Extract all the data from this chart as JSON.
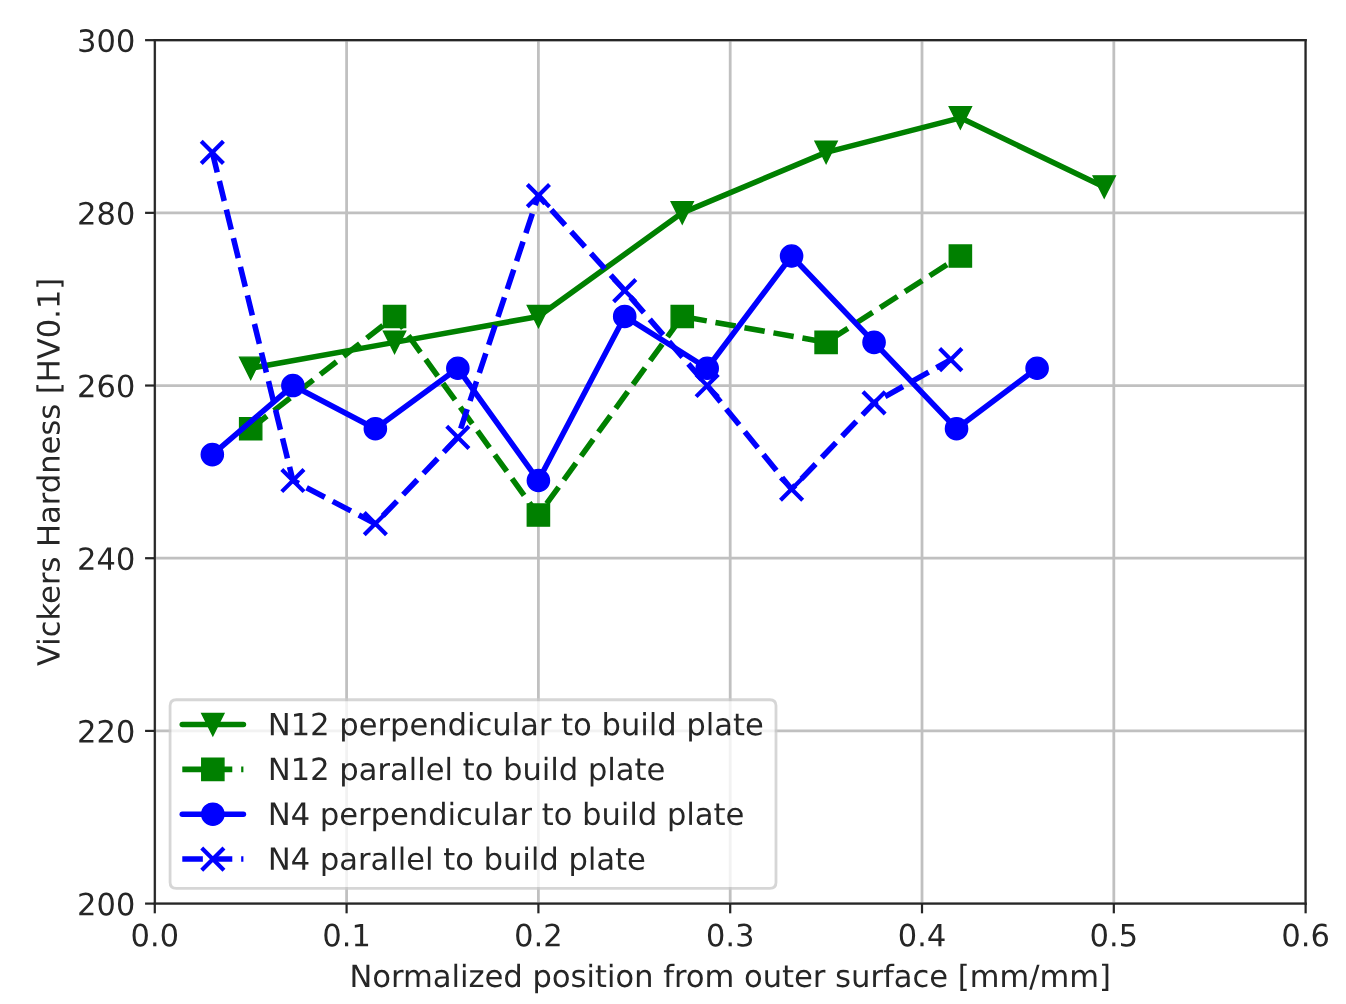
{
  "chart_data": {
    "type": "line",
    "xlabel": "Normalized position from outer surface [mm/mm]",
    "ylabel": "Vickers Hardness [HV0.1]",
    "xlim": [
      0.0,
      0.6
    ],
    "xticks": [
      {
        "value": 0.0,
        "label": "0.0"
      },
      0.1,
      0.2,
      0.3,
      0.4,
      0.5,
      0.6
    ],
    "ylim": [
      200,
      300
    ],
    "yticks": [
      200,
      220,
      240,
      260,
      280,
      300
    ],
    "grid": true,
    "legend": "bottom left",
    "series": [
      {
        "name": "N12 perpendicular to build plate",
        "color": "#008000",
        "marker": "triangle",
        "line_style": "solid",
        "x": [
          0.05,
          0.125,
          0.2,
          0.275,
          0.35,
          0.42,
          0.495
        ],
        "values": [
          262,
          265,
          268,
          280,
          287,
          291,
          283
        ]
      },
      {
        "name": "N12 parallel to build plate",
        "color": "#008000",
        "marker": "square",
        "line_style": "dashed",
        "x": [
          0.05,
          0.125,
          0.2,
          0.275,
          0.35,
          0.42
        ],
        "values": [
          255,
          268,
          245,
          268,
          265,
          275
        ]
      },
      {
        "name": "N4 perpendicular to build plate",
        "color": "#0000ff",
        "marker": "circle",
        "line_style": "solid",
        "x": [
          0.03,
          0.072,
          0.115,
          0.158,
          0.2,
          0.245,
          0.288,
          0.332,
          0.375,
          0.418,
          0.46
        ],
        "values": [
          252,
          260,
          255,
          262,
          249,
          268,
          262,
          275,
          265,
          255,
          262
        ]
      },
      {
        "name": "N4 parallel to build plate",
        "color": "#0000ff",
        "marker": "cross",
        "line_style": "dashed",
        "x": [
          0.03,
          0.072,
          0.115,
          0.158,
          0.2,
          0.245,
          0.288,
          0.332,
          0.375,
          0.415
        ],
        "values": [
          287,
          249,
          244,
          254,
          282,
          271,
          260,
          248,
          258,
          263
        ]
      }
    ]
  }
}
